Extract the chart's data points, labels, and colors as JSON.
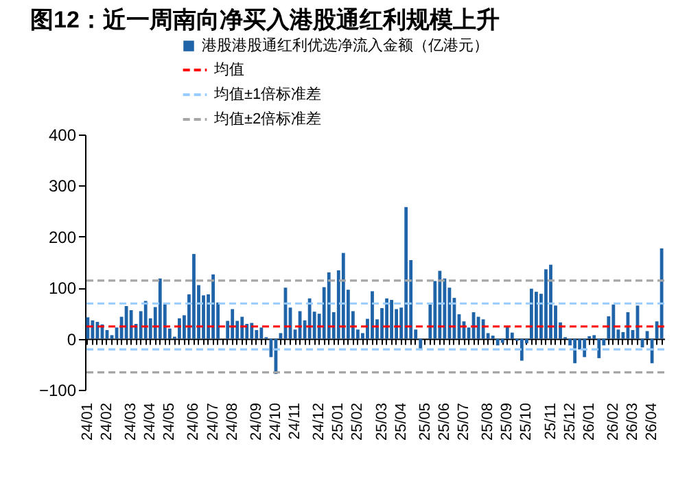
{
  "chart_data": {
    "type": "bar",
    "title": "图12：近一周南向净买入港股通红利规模上升",
    "categories": [
      "24/01",
      null,
      null,
      null,
      "24/02",
      null,
      null,
      null,
      null,
      "24/03",
      null,
      null,
      null,
      "24/04",
      null,
      null,
      null,
      "24/05",
      null,
      null,
      null,
      null,
      "24/06",
      null,
      null,
      null,
      "24/07",
      null,
      null,
      null,
      "24/08",
      null,
      null,
      null,
      null,
      "24/09",
      null,
      null,
      null,
      "24/10",
      null,
      null,
      null,
      "24/11",
      null,
      null,
      null,
      null,
      "24/12",
      null,
      null,
      null,
      "25/01",
      null,
      null,
      null,
      "25/02",
      null,
      null,
      null,
      null,
      "25/03",
      null,
      null,
      null,
      "25/04",
      null,
      null,
      null,
      null,
      "25/05",
      null,
      null,
      null,
      "25/06",
      null,
      null,
      null,
      "25/07",
      null,
      null,
      null,
      null,
      "25/08",
      null,
      null,
      null,
      "25/09",
      null,
      null,
      null,
      "25/10",
      null,
      null,
      null,
      null,
      "25/11",
      null,
      null,
      null,
      "25/12",
      null,
      null,
      null,
      "26/01",
      null,
      null,
      null,
      null,
      "26/02",
      null,
      null,
      null,
      "26/03",
      null,
      null,
      null,
      "26/04",
      null,
      null
    ],
    "series": [
      {
        "name": "港股港股通红利优选净流入金额（亿港元）",
        "color": "#1f64a8",
        "values": [
          42,
          36,
          33,
          28,
          17,
          7,
          22,
          43,
          64,
          56,
          29,
          54,
          74,
          40,
          62,
          118,
          70,
          20,
          4,
          40,
          46,
          87,
          166,
          105,
          85,
          87,
          126,
          71,
          0,
          35,
          58,
          35,
          43,
          29,
          31,
          17,
          22,
          3,
          -36,
          -69,
          11,
          100,
          61,
          18,
          54,
          36,
          79,
          53,
          49,
          101,
          130,
          52,
          134,
          168,
          96,
          54,
          18,
          11,
          39,
          93,
          38,
          60,
          79,
          76,
          58,
          61,
          258,
          154,
          18,
          -20,
          0,
          67,
          113,
          133,
          118,
          100,
          80,
          48,
          34,
          22,
          52,
          43,
          38,
          11,
          6,
          -13,
          -8,
          25,
          12,
          -4,
          -43,
          -9,
          98,
          92,
          88,
          136,
          145,
          65,
          32,
          3,
          -13,
          -48,
          -21,
          -36,
          5,
          7,
          -38,
          -13,
          44,
          67,
          18,
          13,
          52,
          17,
          65,
          -17,
          15,
          -48,
          34,
          177
        ]
      }
    ],
    "ylim": [
      -100,
      400
    ],
    "yticks": [
      -100,
      0,
      100,
      200,
      300,
      400
    ],
    "legend": "top left",
    "ref_lines": [
      {
        "axis": "y",
        "value": 24,
        "label": "均值",
        "color": "#ff0000",
        "line_style": "dashed"
      },
      {
        "axis": "y",
        "value": 69,
        "label": "均值±1倍标准差",
        "color": "#99ccff",
        "line_style": "dashed"
      },
      {
        "axis": "y",
        "value": -21,
        "color": "#99ccff",
        "line_style": "dashed"
      },
      {
        "axis": "y",
        "value": 114,
        "label": "均值±2倍标准差",
        "color": "#a6a6a6",
        "line_style": "dashed"
      },
      {
        "axis": "y",
        "value": -66,
        "color": "#a6a6a6",
        "line_style": "dashed"
      }
    ]
  }
}
